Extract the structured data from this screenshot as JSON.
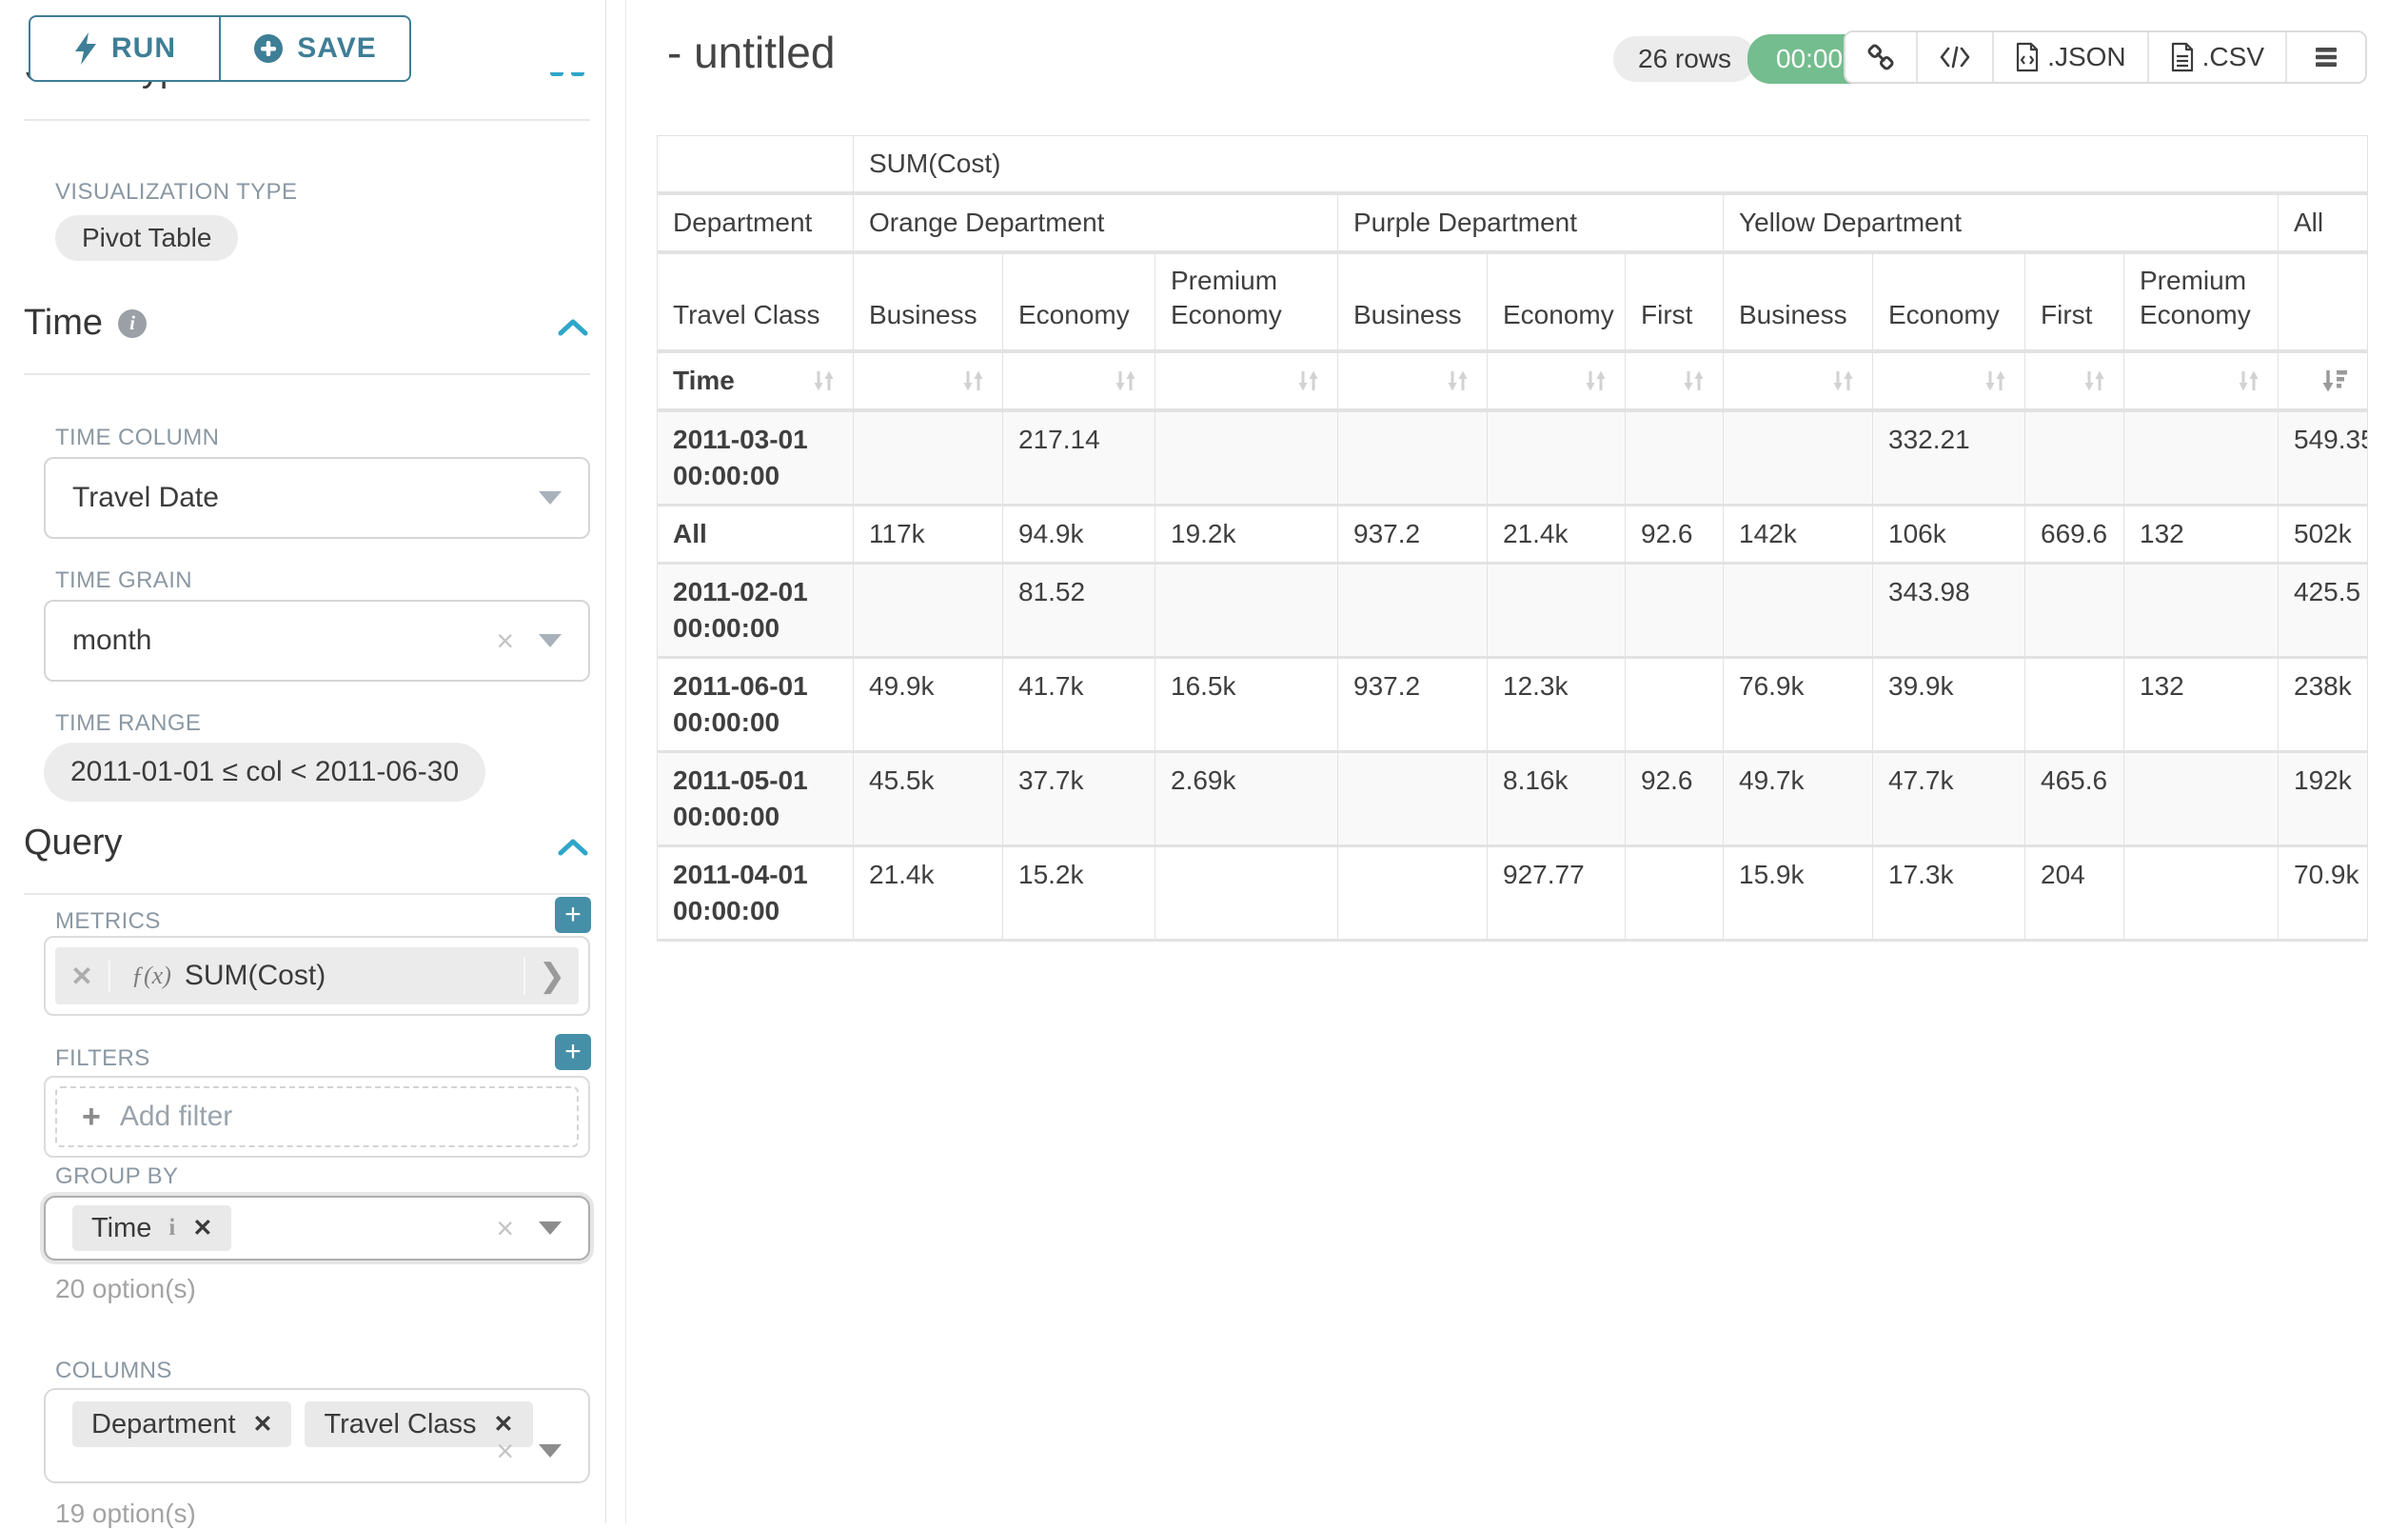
{
  "sidebar": {
    "run": "RUN",
    "save": "SAVE",
    "chart_type_title": "Chart Type",
    "viz_label": "VISUALIZATION TYPE",
    "viz_value": "Pivot Table",
    "time": {
      "title": "Time",
      "time_column_label": "TIME COLUMN",
      "time_column": "Travel Date",
      "time_grain_label": "TIME GRAIN",
      "time_grain": "month",
      "time_range_label": "TIME RANGE",
      "time_range": "2011-01-01 ≤ col < 2011-06-30"
    },
    "query": {
      "title": "Query",
      "metrics_label": "METRICS",
      "metric_fx": "ƒ(x)",
      "metric": "SUM(Cost)",
      "filters_label": "FILTERS",
      "add_filter": "Add filter",
      "group_by_label": "GROUP BY",
      "group_by_chip": "Time",
      "group_by_count": "20 option(s)",
      "columns_label": "COLUMNS",
      "columns_chips": [
        "Department",
        "Travel Class"
      ],
      "columns_count": "19 option(s)"
    }
  },
  "main": {
    "title": "- untitled",
    "row_count": "26 rows",
    "timer": "00:00:00.18",
    "export_json": ".JSON",
    "export_csv": ".CSV"
  },
  "chart_data": {
    "type": "table",
    "metric_header": "SUM(Cost)",
    "row_axis_label": "Department",
    "row_axis_sублabel": "Travel Class",
    "dept_row": [
      {
        "label": "Department",
        "span": 1
      },
      {
        "label": "Orange Department",
        "span": 3
      },
      {
        "label": "Purple Department",
        "span": 3
      },
      {
        "label": "Yellow Department",
        "span": 4
      },
      {
        "label": "All",
        "span": 1
      }
    ],
    "class_row": [
      "Travel Class",
      "Business",
      "Economy",
      "Premium Economy",
      "Business",
      "Economy",
      "First",
      "Business",
      "Economy",
      "First",
      "Premium Economy",
      ""
    ],
    "time_label": "Time",
    "sorted_column_index": 11,
    "sort_direction": "desc",
    "rows": [
      [
        "2011-03-01 00:00:00",
        "",
        "217.14",
        "",
        "",
        "",
        "",
        "",
        "332.21",
        "",
        "",
        "549.35"
      ],
      [
        "All",
        "117k",
        "94.9k",
        "19.2k",
        "937.2",
        "21.4k",
        "92.6",
        "142k",
        "106k",
        "669.6",
        "132",
        "502k"
      ],
      [
        "2011-02-01 00:00:00",
        "",
        "81.52",
        "",
        "",
        "",
        "",
        "",
        "343.98",
        "",
        "",
        "425.5"
      ],
      [
        "2011-06-01 00:00:00",
        "49.9k",
        "41.7k",
        "16.5k",
        "937.2",
        "12.3k",
        "",
        "76.9k",
        "39.9k",
        "",
        "132",
        "238k"
      ],
      [
        "2011-05-01 00:00:00",
        "45.5k",
        "37.7k",
        "2.69k",
        "",
        "8.16k",
        "92.6",
        "49.7k",
        "47.7k",
        "465.6",
        "",
        "192k"
      ],
      [
        "2011-04-01 00:00:00",
        "21.4k",
        "15.2k",
        "",
        "",
        "927.77",
        "",
        "15.9k",
        "17.3k",
        "204",
        "",
        "70.9k"
      ]
    ]
  }
}
